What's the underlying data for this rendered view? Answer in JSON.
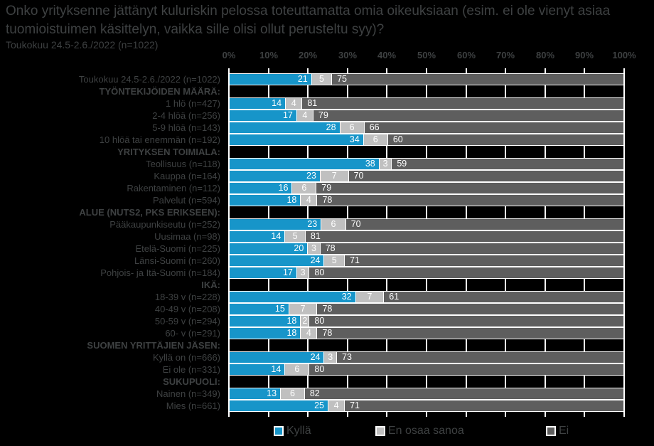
{
  "title": "Onko yrityksenne jättänyt kuluriskin pelossa toteuttamatta omia oikeuksiaan (esim. ei ole vienyt asiaa tuomioistuimen käsittelyn, vaikka sille olisi ollut perusteltu syy)?",
  "subtitle": "Toukokuu 24.5-2.6./2022 (n=1022)",
  "colors": {
    "kylla": "#1795c9",
    "en_osaa_sanoa": "#c0c0c0",
    "ei": "#5e5e5e",
    "background": "#000000",
    "text": "#3e4142",
    "value_text": "#ffffff",
    "grid": "#ffffff"
  },
  "legend": [
    {
      "label": "Kyllä",
      "color_key": "kylla"
    },
    {
      "label": "En osaa sanoa",
      "color_key": "en_osaa_sanoa"
    },
    {
      "label": "Ei",
      "color_key": "ei"
    }
  ],
  "chart_data": {
    "type": "bar",
    "orientation": "horizontal",
    "stacked": true,
    "unit": "%",
    "title": "Onko yrityksenne jättänyt kuluriskin pelossa toteuttamatta omia oikeuksiaan (esim. ei ole vienyt asiaa tuomioistuimen käsittelyn, vaikka sille olisi ollut perusteltu syy)?",
    "subtitle": "Toukokuu 24.5-2.6./2022 (n=1022)",
    "x_axis": {
      "min": 0,
      "max": 100,
      "tick_step": 10,
      "ticks": [
        "0%",
        "10%",
        "20%",
        "30%",
        "40%",
        "50%",
        "60%",
        "70%",
        "80%",
        "90%",
        "100%"
      ]
    },
    "series_names": [
      "Kyllä",
      "En osaa sanoa",
      "Ei"
    ],
    "legend_position": "bottom",
    "grid": true,
    "rows": [
      {
        "label": "Toukokuu 24.5-2.6./2022 (n=1022)",
        "header": false,
        "values": {
          "kylla": 21,
          "en_osaa_sanoa": 5,
          "ei": 75
        }
      },
      {
        "label": "TYÖNTEKIJÖIDEN MÄÄRÄ:",
        "header": true
      },
      {
        "label": "1 hlö (n=427)",
        "header": false,
        "values": {
          "kylla": 14,
          "en_osaa_sanoa": 4,
          "ei": 81
        }
      },
      {
        "label": "2-4 hlöä (n=256)",
        "header": false,
        "values": {
          "kylla": 17,
          "en_osaa_sanoa": 4,
          "ei": 79
        }
      },
      {
        "label": "5-9 hlöä (n=143)",
        "header": false,
        "values": {
          "kylla": 28,
          "en_osaa_sanoa": 6,
          "ei": 66
        }
      },
      {
        "label": "10 hlöä tai enemmän (n=192)",
        "header": false,
        "values": {
          "kylla": 34,
          "en_osaa_sanoa": 6,
          "ei": 60
        }
      },
      {
        "label": "YRITYKSEN TOIMIALA:",
        "header": true
      },
      {
        "label": "Teollisuus (n=118)",
        "header": false,
        "values": {
          "kylla": 38,
          "en_osaa_sanoa": 3,
          "ei": 59
        }
      },
      {
        "label": "Kauppa (n=164)",
        "header": false,
        "values": {
          "kylla": 23,
          "en_osaa_sanoa": 7,
          "ei": 70
        }
      },
      {
        "label": "Rakentaminen (n=112)",
        "header": false,
        "values": {
          "kylla": 16,
          "en_osaa_sanoa": 6,
          "ei": 79
        }
      },
      {
        "label": "Palvelut (n=594)",
        "header": false,
        "values": {
          "kylla": 18,
          "en_osaa_sanoa": 4,
          "ei": 78
        }
      },
      {
        "label": "ALUE (NUTS2, PKS ERIKSEEN):",
        "header": true
      },
      {
        "label": "Pääkaupunkiseutu (n=252)",
        "header": false,
        "values": {
          "kylla": 23,
          "en_osaa_sanoa": 6,
          "ei": 70
        }
      },
      {
        "label": "Uusimaa (n=98)",
        "header": false,
        "values": {
          "kylla": 14,
          "en_osaa_sanoa": 5,
          "ei": 81
        }
      },
      {
        "label": "Etelä-Suomi (n=225)",
        "header": false,
        "values": {
          "kylla": 20,
          "en_osaa_sanoa": 3,
          "ei": 78
        }
      },
      {
        "label": "Länsi-Suomi (n=260)",
        "header": false,
        "values": {
          "kylla": 24,
          "en_osaa_sanoa": 5,
          "ei": 71
        }
      },
      {
        "label": "Pohjois- ja Itä-Suomi (n=184)",
        "header": false,
        "values": {
          "kylla": 17,
          "en_osaa_sanoa": 3,
          "ei": 80
        }
      },
      {
        "label": "IKÄ:",
        "header": true
      },
      {
        "label": "18-39 v (n=228)",
        "header": false,
        "values": {
          "kylla": 32,
          "en_osaa_sanoa": 7,
          "ei": 61
        }
      },
      {
        "label": "40-49 v (n=208)",
        "header": false,
        "values": {
          "kylla": 15,
          "en_osaa_sanoa": 7,
          "ei": 78
        }
      },
      {
        "label": "50-59 v (n=294)",
        "header": false,
        "values": {
          "kylla": 18,
          "en_osaa_sanoa": 2,
          "ei": 80
        }
      },
      {
        "label": "60- v (n=291)",
        "header": false,
        "values": {
          "kylla": 18,
          "en_osaa_sanoa": 4,
          "ei": 78
        }
      },
      {
        "label": "SUOMEN YRITTÄJIEN JÄSEN:",
        "header": true
      },
      {
        "label": "Kyllä on (n=666)",
        "header": false,
        "values": {
          "kylla": 24,
          "en_osaa_sanoa": 3,
          "ei": 73
        }
      },
      {
        "label": "Ei ole (n=331)",
        "header": false,
        "values": {
          "kylla": 14,
          "en_osaa_sanoa": 6,
          "ei": 80
        }
      },
      {
        "label": "SUKUPUOLI:",
        "header": true
      },
      {
        "label": "Nainen (n=349)",
        "header": false,
        "values": {
          "kylla": 13,
          "en_osaa_sanoa": 6,
          "ei": 82
        }
      },
      {
        "label": "Mies (n=661)",
        "header": false,
        "values": {
          "kylla": 25,
          "en_osaa_sanoa": 4,
          "ei": 71
        }
      }
    ]
  }
}
